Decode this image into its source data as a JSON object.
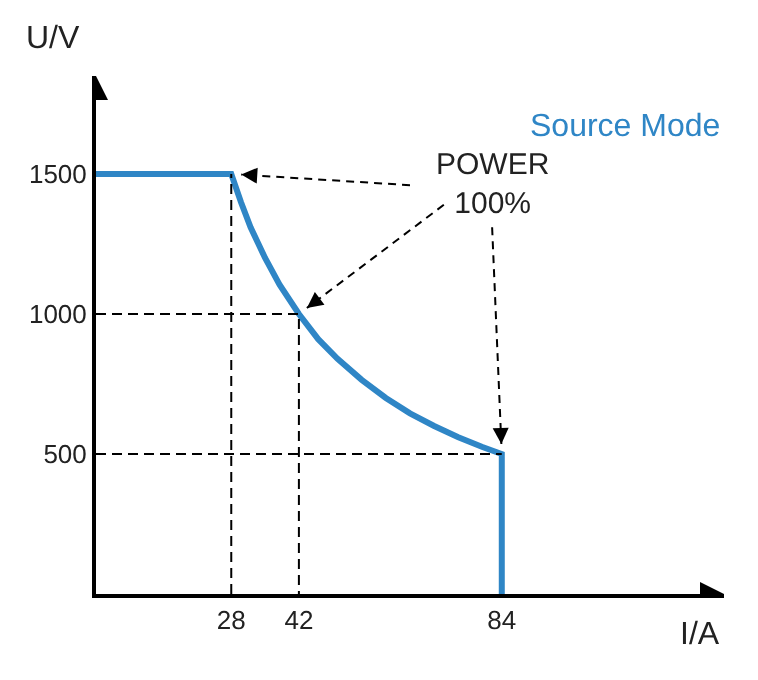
{
  "chart_data": {
    "type": "line",
    "title": "Source Mode",
    "xlabel": "I/A",
    "ylabel": "U/V",
    "xlim": [
      0,
      130
    ],
    "ylim": [
      0,
      1850
    ],
    "xticks": [
      28,
      42,
      84
    ],
    "yticks": [
      500,
      1000,
      1500
    ],
    "series": [
      {
        "color": "#2f86c6",
        "line_style": "solid",
        "x": [
          0,
          28,
          30,
          32,
          35,
          38,
          42,
          46,
          50,
          55,
          60,
          65,
          70,
          75,
          80,
          84,
          84
        ],
        "values": [
          1500,
          1500,
          1400,
          1310,
          1200,
          1105,
          1000,
          910,
          840,
          765,
          700,
          645,
          600,
          560,
          525,
          500,
          0
        ]
      },
      {
        "color": "#000000",
        "line_style": "dashed",
        "x": [
          28,
          28
        ],
        "values": [
          0,
          1500
        ]
      },
      {
        "color": "#000000",
        "line_style": "dashed",
        "x": [
          0,
          42,
          42
        ],
        "values": [
          1000,
          1000,
          0
        ]
      },
      {
        "color": "#000000",
        "line_style": "dashed",
        "x": [
          0,
          84
        ],
        "values": [
          500,
          500
        ]
      }
    ],
    "annotations": [
      {
        "text": "POWER\n100%",
        "x": 28,
        "y": 1500
      }
    ]
  }
}
